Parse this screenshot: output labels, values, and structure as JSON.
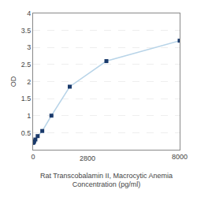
{
  "chart_data": {
    "type": "line",
    "x": [
      0,
      31.25,
      62.5,
      125,
      250,
      500,
      1000,
      2000,
      4000,
      8000
    ],
    "series": [
      {
        "type": "line",
        "color": "#b8d4e8",
        "values": [
          0.2,
          0.22,
          0.25,
          0.3,
          0.4,
          0.55,
          1.0,
          1.85,
          2.6,
          3.2
        ]
      },
      {
        "type": "scatter",
        "color": "#1a3a6b",
        "marker": "square",
        "values": [
          0.2,
          0.22,
          0.25,
          0.3,
          0.4,
          0.55,
          1.0,
          1.85,
          2.6,
          3.2
        ]
      }
    ],
    "x_label": [
      "Rat Transcobalamin II, Macrocytic Anemia",
      "Concentration (pg/ml)"
    ],
    "y_label": "OD",
    "annotations": [
      {
        "text": "2800"
      }
    ],
    "xlim": [
      0,
      8000
    ],
    "xticks": [
      0,
      8000
    ],
    "ylim": [
      0,
      4.0
    ],
    "yticks": [
      0.5,
      1,
      1.5,
      2,
      2.5,
      3,
      3.5,
      4
    ],
    "grid": true
  }
}
